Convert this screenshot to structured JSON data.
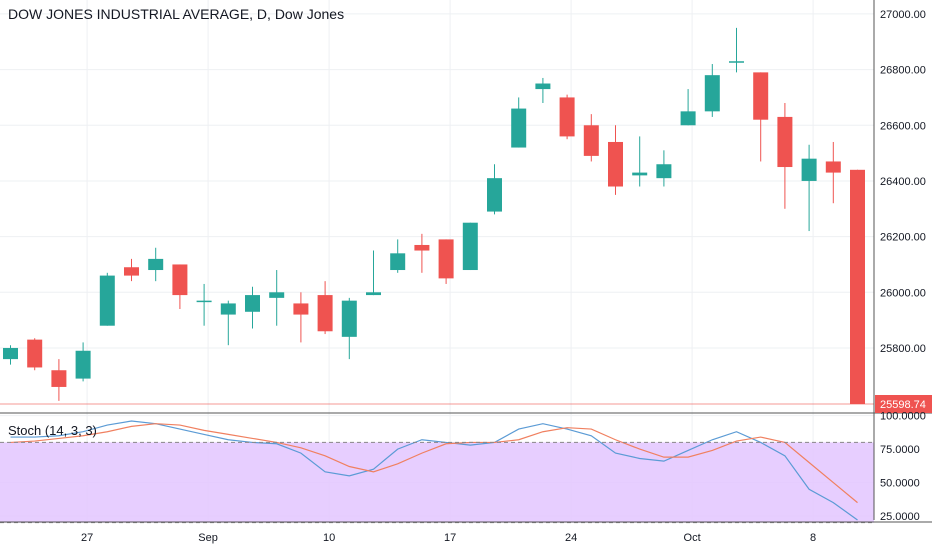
{
  "title": "DOW JONES INDUSTRIAL AVERAGE, D, Dow Jones",
  "stoch_label": "Stoch (14, 3, 3)",
  "colors": {
    "up": "#26a69a",
    "down": "#ef5350",
    "grid": "#eef0f3",
    "axis_text": "#131722",
    "k_line": "#5b9bd5",
    "d_line": "#f08060",
    "stoch_band": "#e3c6ff",
    "price_tag": "#ef5350"
  },
  "chart_data": [
    {
      "type": "candlestick",
      "title": "DOW JONES INDUSTRIAL AVERAGE, D, Dow Jones",
      "y_ticks": [
        "25800.00",
        "26000.00",
        "26200.00",
        "26400.00",
        "26600.00",
        "26800.00",
        "27000.00"
      ],
      "ylim": [
        25570,
        27050
      ],
      "x_tick_labels": [
        {
          "label": "27",
          "index": 3
        },
        {
          "label": "Sep",
          "index": 8
        },
        {
          "label": "10",
          "index": 13
        },
        {
          "label": "17",
          "index": 18
        },
        {
          "label": "24",
          "index": 23
        },
        {
          "label": "Oct",
          "index": 28
        },
        {
          "label": "8",
          "index": 33
        }
      ],
      "last_price_label": "25598.74",
      "last_price": 25598.74,
      "candles": [
        {
          "o": 25760,
          "h": 25810,
          "l": 25740,
          "c": 25800
        },
        {
          "o": 25830,
          "h": 25835,
          "l": 25720,
          "c": 25730
        },
        {
          "o": 25720,
          "h": 25760,
          "l": 25610,
          "c": 25660
        },
        {
          "o": 25690,
          "h": 25820,
          "l": 25680,
          "c": 25790
        },
        {
          "o": 25880,
          "h": 26070,
          "l": 25880,
          "c": 26060
        },
        {
          "o": 26090,
          "h": 26120,
          "l": 26040,
          "c": 26060
        },
        {
          "o": 26080,
          "h": 26160,
          "l": 26040,
          "c": 26120
        },
        {
          "o": 26100,
          "h": 26100,
          "l": 25940,
          "c": 25990
        },
        {
          "o": 25970,
          "h": 26030,
          "l": 25880,
          "c": 25970
        },
        {
          "o": 25920,
          "h": 25970,
          "l": 25810,
          "c": 25960
        },
        {
          "o": 25930,
          "h": 26020,
          "l": 25870,
          "c": 25990
        },
        {
          "o": 25980,
          "h": 26080,
          "l": 25880,
          "c": 26000
        },
        {
          "o": 25960,
          "h": 26000,
          "l": 25820,
          "c": 25920
        },
        {
          "o": 25990,
          "h": 26040,
          "l": 25850,
          "c": 25860
        },
        {
          "o": 25840,
          "h": 25980,
          "l": 25760,
          "c": 25970
        },
        {
          "o": 25990,
          "h": 26150,
          "l": 25990,
          "c": 26000
        },
        {
          "o": 26080,
          "h": 26190,
          "l": 26070,
          "c": 26140
        },
        {
          "o": 26170,
          "h": 26210,
          "l": 26070,
          "c": 26150
        },
        {
          "o": 26190,
          "h": 26190,
          "l": 26030,
          "c": 26050
        },
        {
          "o": 26080,
          "h": 26250,
          "l": 26080,
          "c": 26250
        },
        {
          "o": 26290,
          "h": 26460,
          "l": 26280,
          "c": 26410
        },
        {
          "o": 26520,
          "h": 26700,
          "l": 26520,
          "c": 26660
        },
        {
          "o": 26730,
          "h": 26770,
          "l": 26680,
          "c": 26750
        },
        {
          "o": 26700,
          "h": 26710,
          "l": 26550,
          "c": 26560
        },
        {
          "o": 26600,
          "h": 26640,
          "l": 26470,
          "c": 26490
        },
        {
          "o": 26540,
          "h": 26600,
          "l": 26350,
          "c": 26380
        },
        {
          "o": 26420,
          "h": 26560,
          "l": 26380,
          "c": 26430
        },
        {
          "o": 26410,
          "h": 26510,
          "l": 26380,
          "c": 26460
        },
        {
          "o": 26600,
          "h": 26730,
          "l": 26600,
          "c": 26650
        },
        {
          "o": 26650,
          "h": 26820,
          "l": 26630,
          "c": 26780
        },
        {
          "o": 26830,
          "h": 26950,
          "l": 26790,
          "c": 26830
        },
        {
          "o": 26790,
          "h": 26790,
          "l": 26470,
          "c": 26620
        },
        {
          "o": 26630,
          "h": 26680,
          "l": 26300,
          "c": 26450
        },
        {
          "o": 26400,
          "h": 26530,
          "l": 26220,
          "c": 26480
        },
        {
          "o": 26470,
          "h": 26540,
          "l": 26320,
          "c": 26430
        },
        {
          "o": 26440,
          "h": 26440,
          "l": 25598.74,
          "c": 25598.74
        }
      ]
    },
    {
      "type": "line",
      "title": "Stoch (14, 3, 3)",
      "y_ticks": [
        "25.0000",
        "50.0000",
        "75.0000",
        "100.0000"
      ],
      "ylim": [
        22,
        102
      ],
      "band": [
        20,
        80
      ],
      "series": [
        {
          "name": "%K",
          "values": [
            84,
            84,
            85,
            88,
            93,
            96,
            94,
            90,
            86,
            82,
            80,
            79,
            72,
            58,
            55,
            60,
            75,
            82,
            80,
            78,
            80,
            90,
            94,
            90,
            85,
            72,
            68,
            66,
            74,
            82,
            88,
            80,
            70,
            45,
            35,
            22
          ]
        },
        {
          "name": "%D",
          "values": [
            80,
            81,
            83,
            85,
            88,
            92,
            94,
            93,
            89,
            86,
            83,
            80,
            76,
            70,
            62,
            58,
            64,
            72,
            79,
            80,
            80,
            82,
            88,
            91,
            90,
            82,
            75,
            69,
            69,
            74,
            81,
            84,
            80,
            65,
            50,
            35
          ]
        }
      ]
    }
  ]
}
